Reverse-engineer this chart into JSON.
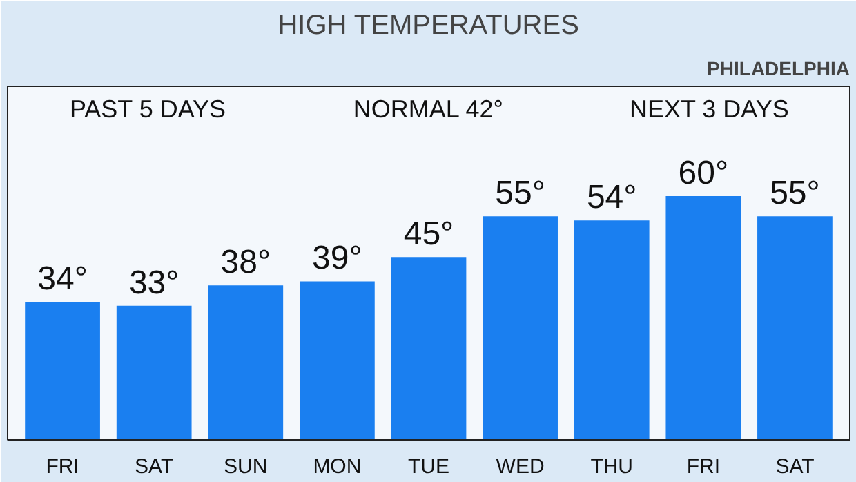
{
  "chart_data": {
    "type": "bar",
    "title": "HIGH TEMPERATURES",
    "subtitle": "PHILADELPHIA",
    "categories": [
      "FRI",
      "SAT",
      "SUN",
      "MON",
      "TUE",
      "WED",
      "THU",
      "FRI",
      "SAT"
    ],
    "values": [
      34,
      33,
      38,
      39,
      45,
      55,
      54,
      60,
      55
    ],
    "value_labels": [
      "34°",
      "33°",
      "38°",
      "39°",
      "45°",
      "55°",
      "54°",
      "60°",
      "55°"
    ],
    "color": "#1a7ff0",
    "annotations": [
      "PAST 5 DAYS",
      "NORMAL 42°",
      "NEXT 3 DAYS"
    ],
    "grid": false
  }
}
